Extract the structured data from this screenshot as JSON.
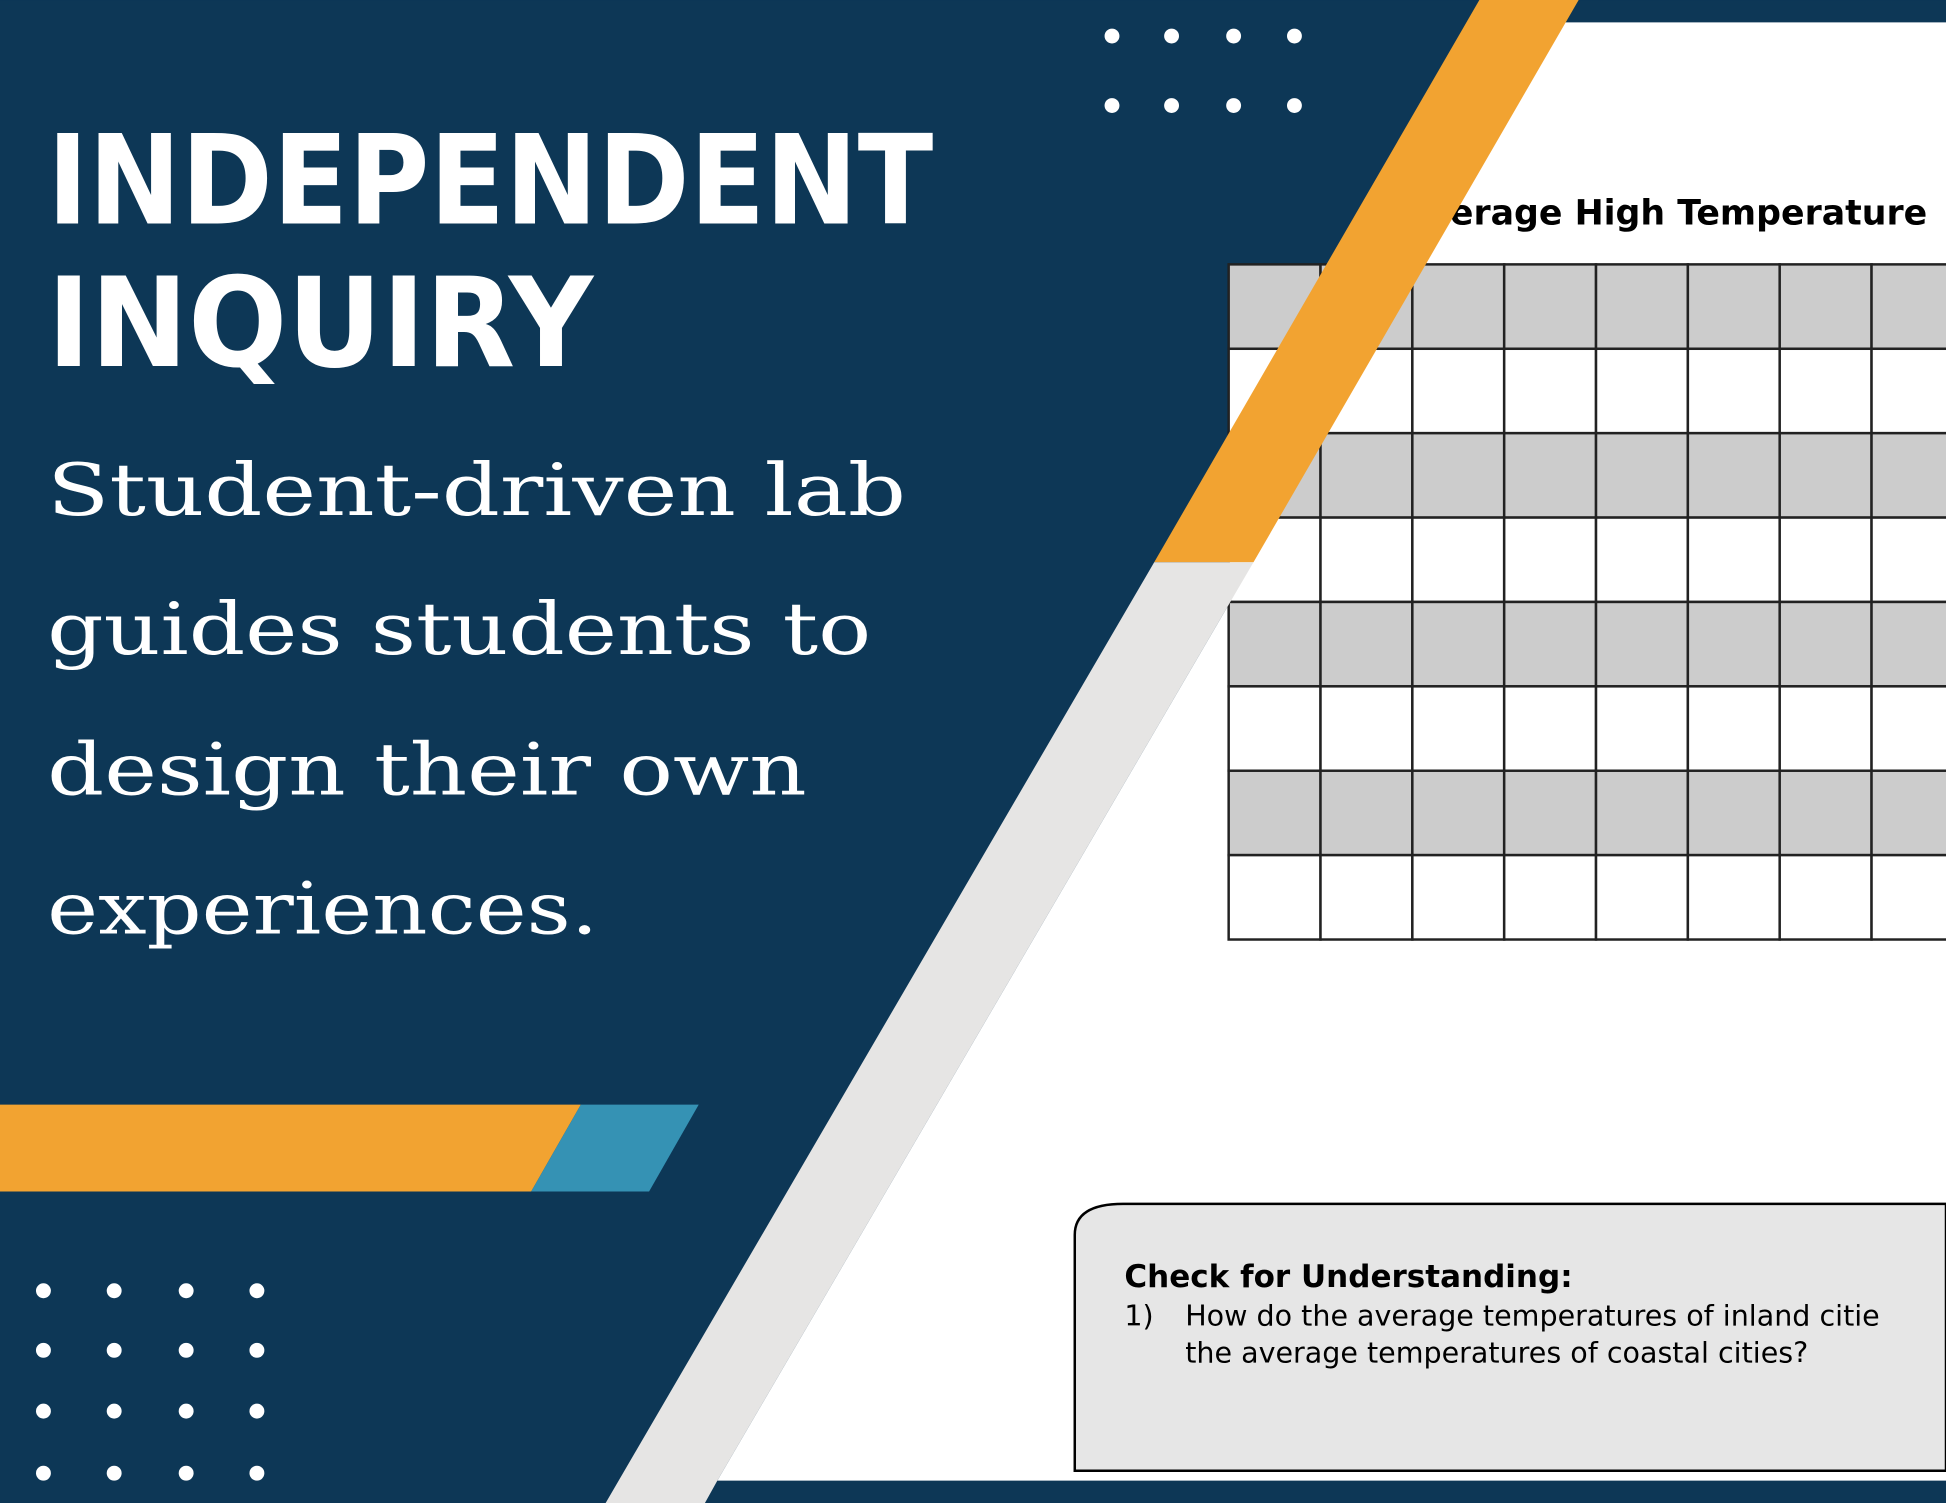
{
  "header": {
    "title_lines": [
      "INDEPENDENT",
      "INQUIRY"
    ],
    "subtitle_lines": [
      "Student-driven lab",
      "guides students to",
      "design their own",
      "experiences."
    ]
  },
  "worksheet": {
    "table_title": "verage High Temperature",
    "check": {
      "heading": "Check for Understanding:",
      "item_number": "1)",
      "item_lines": [
        "How do the average temperatures of inland citie",
        "the average temperatures of coastal cities?"
      ]
    }
  }
}
